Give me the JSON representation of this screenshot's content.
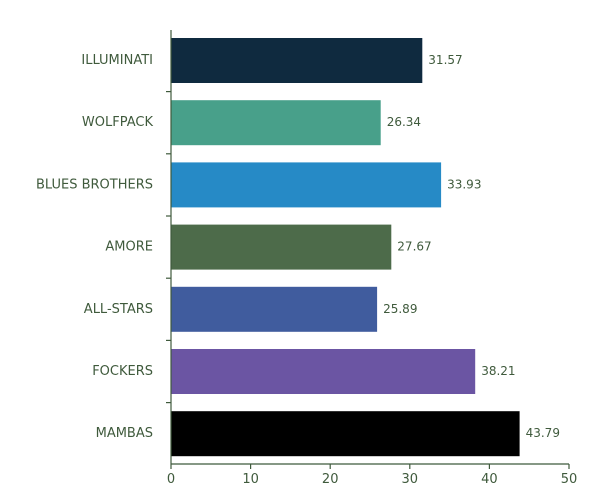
{
  "chart_data": {
    "type": "bar",
    "orientation": "horizontal",
    "title": "",
    "xlabel": "",
    "ylabel": "",
    "categories": [
      "ILLUMINATI",
      "WOLFPACK",
      "BLUES BROTHERS",
      "AMORE",
      "ALL-STARS",
      "FOCKERS",
      "MAMBAS"
    ],
    "values": [
      31.57,
      26.34,
      33.93,
      27.67,
      25.89,
      38.21,
      43.79
    ],
    "value_labels": [
      "31.57",
      "26.34",
      "33.93",
      "27.67",
      "25.89",
      "38.21",
      "43.79"
    ],
    "colors": [
      "#0f2a3f",
      "#48a08a",
      "#268ac6",
      "#4d6b4a",
      "#405c9e",
      "#6b55a3",
      "#000000"
    ],
    "xlim": [
      0,
      50
    ],
    "xticks": [
      0,
      10,
      20,
      30,
      40,
      50
    ],
    "xtick_labels": [
      "0",
      "10",
      "20",
      "30",
      "40",
      "50"
    ],
    "grid": false,
    "legend": "none"
  }
}
